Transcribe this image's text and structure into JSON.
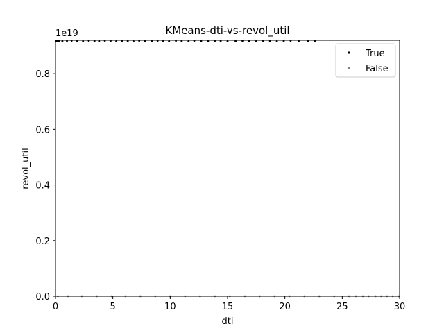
{
  "chart_data": {
    "type": "scatter",
    "title": "KMeans-dti-vs-revol_util",
    "xlabel": "dti",
    "ylabel": "revol_util",
    "y_multiplier_label": "1e19",
    "xlim": [
      0,
      30
    ],
    "ylim": [
      0,
      0.92
    ],
    "xticks": [
      0,
      5,
      10,
      15,
      20,
      25,
      30
    ],
    "xtick_labels": [
      "0",
      "5",
      "10",
      "15",
      "20",
      "25",
      "30"
    ],
    "yticks": [
      0.0,
      0.2,
      0.4,
      0.6,
      0.8
    ],
    "ytick_labels": [
      "0.0",
      "0.2",
      "0.4",
      "0.6",
      "0.8"
    ],
    "grid": false,
    "legend_position": "upper right",
    "series": [
      {
        "name": "True",
        "color": "#000000",
        "points": [
          [
            0.1,
            0.917
          ],
          [
            0.3,
            0.918
          ],
          [
            0.6,
            0.916
          ],
          [
            1.0,
            0.917
          ],
          [
            1.4,
            0.918
          ],
          [
            1.9,
            0.917
          ],
          [
            2.4,
            0.916
          ],
          [
            2.9,
            0.918
          ],
          [
            3.4,
            0.917
          ],
          [
            3.8,
            0.916
          ],
          [
            4.3,
            0.918
          ],
          [
            4.8,
            0.917
          ],
          [
            5.3,
            0.916
          ],
          [
            5.8,
            0.918
          ],
          [
            6.3,
            0.917
          ],
          [
            6.8,
            0.916
          ],
          [
            7.3,
            0.918
          ],
          [
            7.8,
            0.917
          ],
          [
            8.4,
            0.916
          ],
          [
            8.9,
            0.918
          ],
          [
            9.4,
            0.917
          ],
          [
            9.9,
            0.916
          ],
          [
            10.5,
            0.918
          ],
          [
            11.0,
            0.917
          ],
          [
            11.6,
            0.916
          ],
          [
            12.1,
            0.918
          ],
          [
            12.7,
            0.917
          ],
          [
            13.3,
            0.916
          ],
          [
            13.9,
            0.918
          ],
          [
            14.4,
            0.917
          ],
          [
            15.0,
            0.916
          ],
          [
            15.7,
            0.917
          ],
          [
            16.3,
            0.918
          ],
          [
            16.9,
            0.917
          ],
          [
            17.5,
            0.916
          ],
          [
            18.1,
            0.918
          ],
          [
            18.7,
            0.917
          ],
          [
            19.3,
            0.916
          ],
          [
            19.9,
            0.917
          ],
          [
            20.5,
            0.918
          ],
          [
            21.2,
            0.917
          ],
          [
            22.0,
            0.916
          ],
          [
            22.6,
            0.917
          ]
        ]
      },
      {
        "name": "False",
        "color": "#808080",
        "points": [
          [
            0.2,
            0.0
          ],
          [
            1.1,
            0.0
          ],
          [
            2.3,
            0.0
          ],
          [
            3.6,
            0.0
          ],
          [
            4.9,
            0.0
          ],
          [
            6.1,
            0.0
          ],
          [
            7.4,
            0.0
          ],
          [
            8.7,
            0.0
          ],
          [
            10.0,
            0.0
          ],
          [
            11.3,
            0.0
          ],
          [
            12.6,
            0.0
          ],
          [
            13.9,
            0.0
          ],
          [
            15.2,
            0.0
          ],
          [
            16.5,
            0.0
          ],
          [
            17.8,
            0.0
          ],
          [
            19.1,
            0.0
          ],
          [
            20.4,
            0.0
          ],
          [
            21.7,
            0.0
          ],
          [
            23.0,
            0.0
          ],
          [
            24.3,
            0.0
          ],
          [
            25.6,
            0.0
          ],
          [
            26.2,
            0.0
          ],
          [
            26.8,
            0.0
          ],
          [
            27.3,
            0.0
          ],
          [
            27.9,
            0.0
          ],
          [
            28.4,
            0.0
          ],
          [
            28.9,
            0.0
          ],
          [
            29.4,
            0.0
          ],
          [
            29.9,
            0.0
          ]
        ]
      }
    ]
  }
}
